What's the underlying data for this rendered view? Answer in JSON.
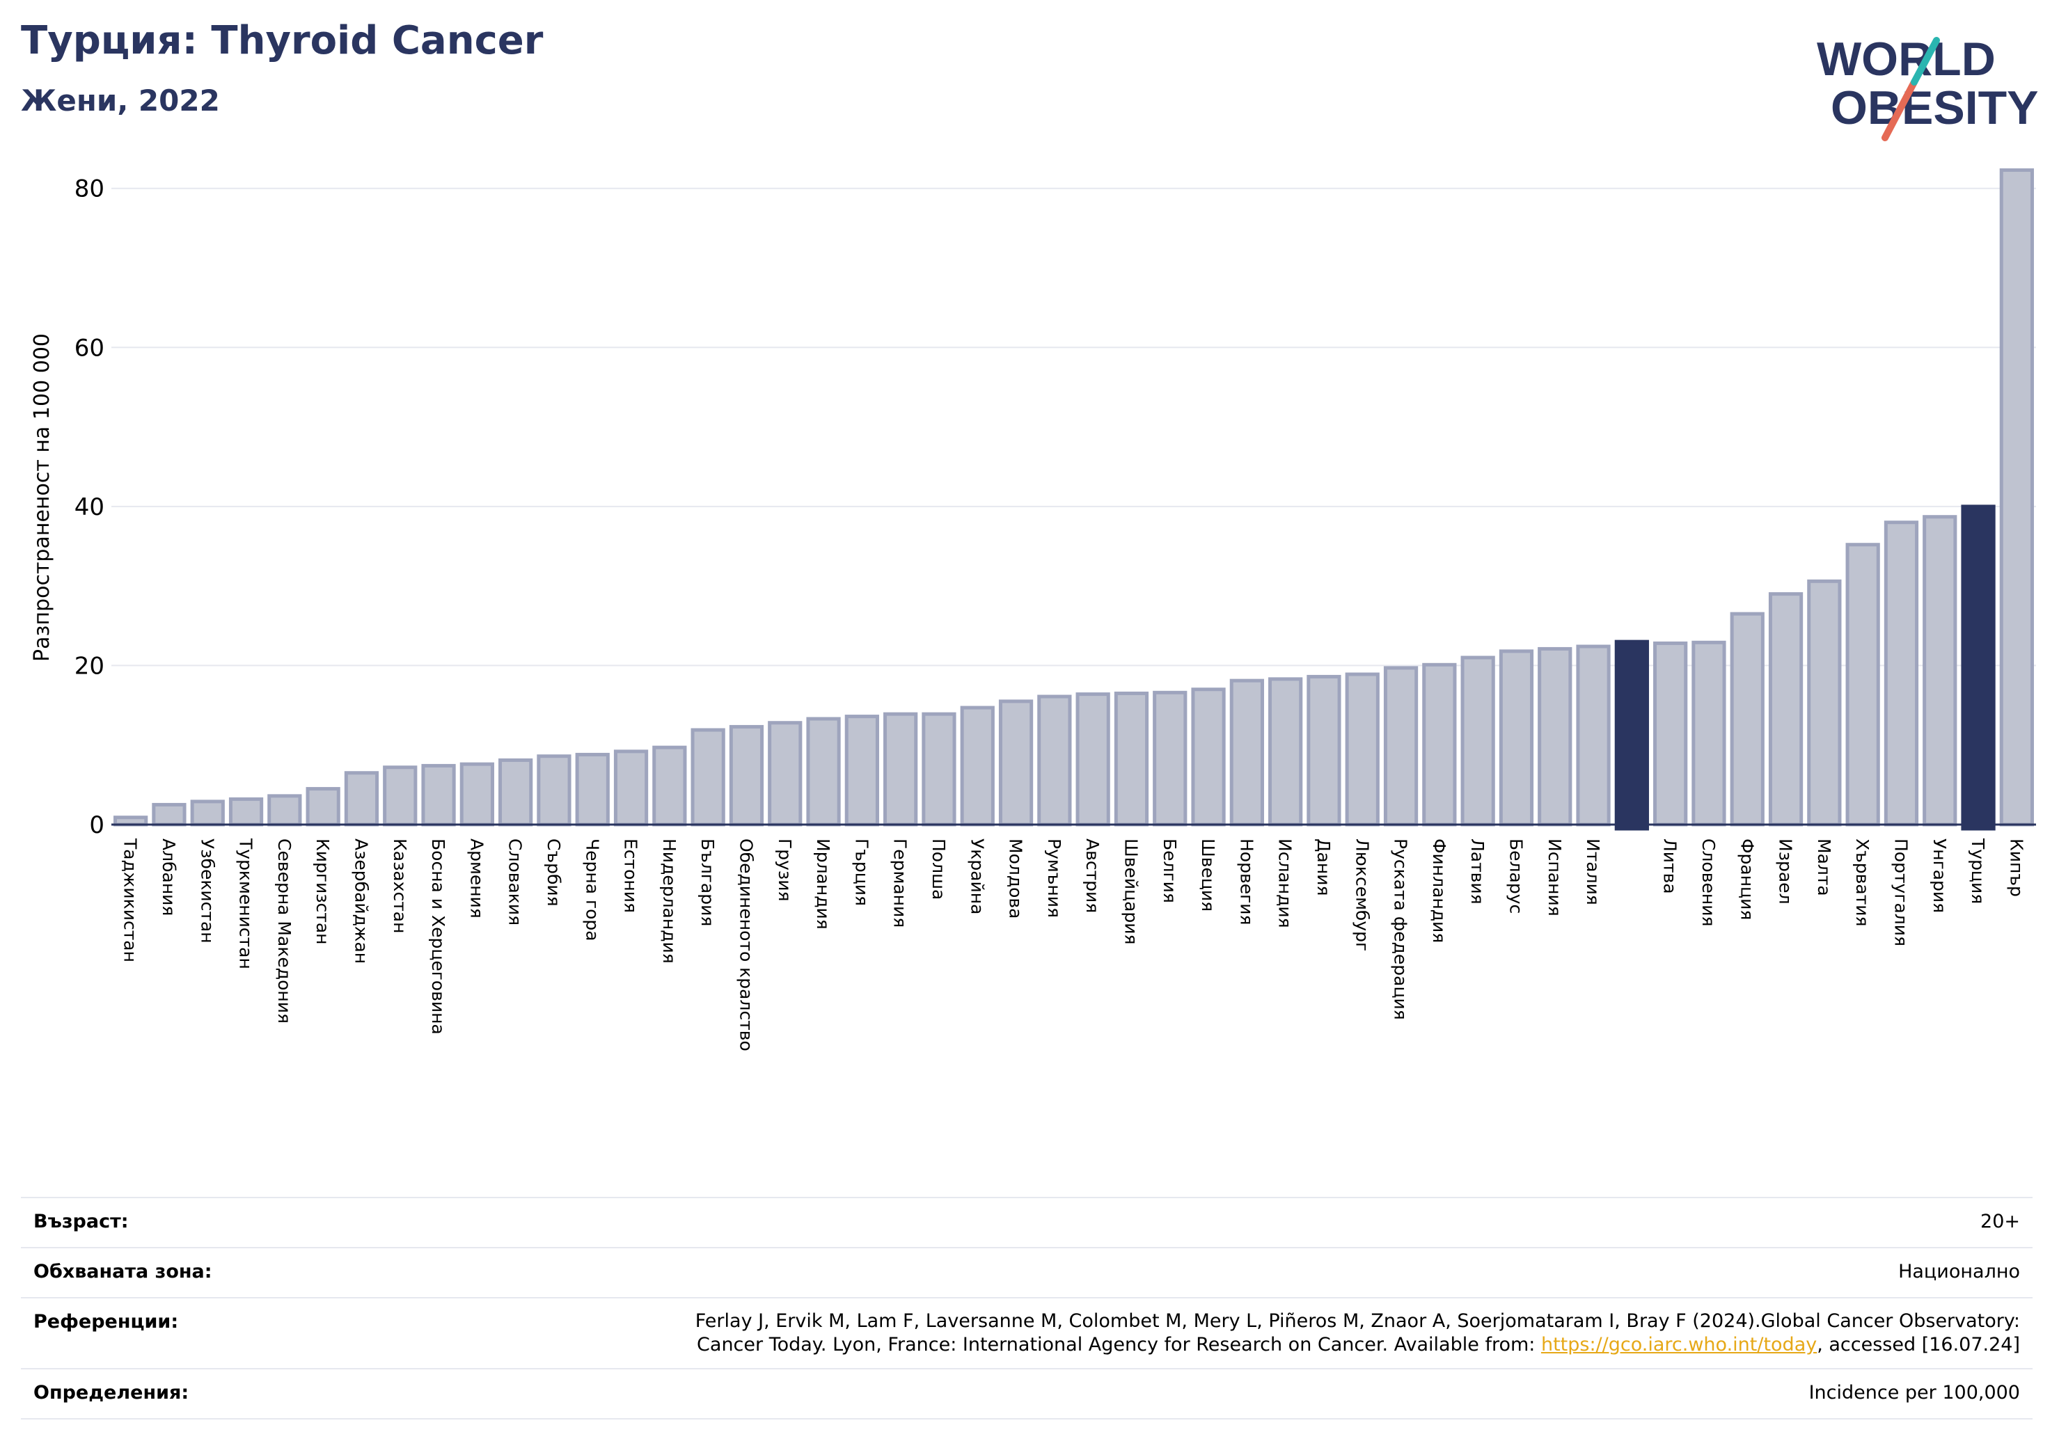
{
  "header": {
    "title": "Турция: Thyroid Cancer",
    "subtitle": "Жени, 2022"
  },
  "logo": {
    "line1": "WORLD",
    "line2": "OBESITY"
  },
  "colors": {
    "bar": "#bfc3d0",
    "bar_edge": "#9ea4bd",
    "highlight": "#2a3560",
    "grid": "#e6e8ef",
    "axis": "#2a3560",
    "title": "#2a3560",
    "logo_slash_teal": "#2ab5b0",
    "logo_slash_red": "#e56a55",
    "link": "#e6a817"
  },
  "chart_data": {
    "type": "bar",
    "title": "Турция: Thyroid Cancer",
    "subtitle": "Жени, 2022",
    "ylabel": "Разпространеност  на 100 000",
    "xlabel": "",
    "ylim": [
      0,
      84
    ],
    "yticks": [
      0,
      20,
      40,
      60,
      80
    ],
    "grid": true,
    "categories": [
      "Таджикистан",
      "Албания",
      "Узбекистан",
      "Туркменистан",
      "Северна Македония",
      "Киргизстан",
      "Азербайджан",
      "Казахстан",
      "Босна и Херцеговина",
      "Армения",
      "Словакия",
      "Сърбия",
      "Черна гора",
      "Естония",
      "Нидерландия",
      "България",
      "Обединеното кралство",
      "Грузия",
      "Ирландия",
      "Гърция",
      "Германия",
      "Полша",
      "Украйна",
      "Молдова",
      "Румъния",
      "Австрия",
      "Швейцария",
      "Белгия",
      "Швеция",
      "Норвегия",
      "Исландия",
      "Дания",
      "Люксембург",
      "Руската федерация",
      "Финландия",
      "Латвия",
      "Беларус",
      "Испания",
      "Италия",
      "",
      "Литва",
      "Словения",
      "Франция",
      "Израел",
      "Малта",
      "Хърватия",
      "Португалия",
      "Унгария",
      "Турция",
      "Кипър"
    ],
    "values": [
      0.9,
      2.5,
      2.9,
      3.2,
      3.6,
      4.5,
      6.5,
      7.2,
      7.4,
      7.6,
      8.1,
      8.6,
      8.8,
      9.2,
      9.7,
      11.9,
      12.3,
      12.8,
      13.3,
      13.6,
      13.9,
      13.9,
      14.7,
      15.5,
      16.1,
      16.4,
      16.5,
      16.6,
      17.0,
      18.1,
      18.3,
      18.6,
      18.9,
      19.7,
      20.1,
      21.0,
      21.8,
      22.1,
      22.4,
      23.0,
      22.8,
      22.9,
      26.5,
      29.0,
      30.6,
      35.2,
      38.0,
      38.7,
      40.0,
      82.3
    ],
    "highlight_indices": [
      39,
      48
    ]
  },
  "footer": {
    "age_label": "Възраст:",
    "age_value": "20+",
    "area_label": "Обхваната зона:",
    "area_value": "Национално",
    "ref_label": "Референции:",
    "ref_text_1": "Ferlay J, Ervik M, Lam F, Laversanne M, Colombet M, Mery L, Piñeros M, Znaor A, Soerjomataram I, Bray F (2024).Global Cancer Observatory:",
    "ref_text_2a": "Cancer Today. Lyon, France: International Agency for Research on Cancer. Available from: ",
    "ref_link": "https://gco.iarc.who.int/today",
    "ref_text_2b": ", accessed [16.07.24]",
    "def_label": "Определения:",
    "def_value": "Incidence per 100,000"
  }
}
